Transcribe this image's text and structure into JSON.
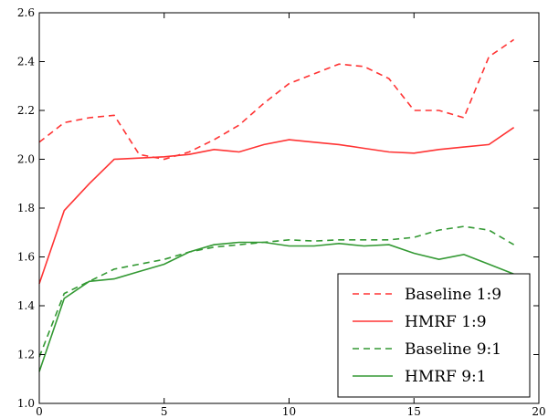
{
  "chart_data": {
    "type": "line",
    "title": "",
    "xlabel": "",
    "ylabel": "",
    "xlim": [
      0,
      20
    ],
    "ylim": [
      1.0,
      2.6
    ],
    "x_ticks": [
      0,
      5,
      10,
      15,
      20
    ],
    "x_tick_labels": [
      "0",
      "5",
      "10",
      "15",
      "20"
    ],
    "y_ticks": [
      1.0,
      1.2,
      1.4,
      1.6,
      1.8,
      2.0,
      2.2,
      2.4,
      2.6
    ],
    "y_tick_labels": [
      "1.0",
      "1.2",
      "1.4",
      "1.6",
      "1.8",
      "2.0",
      "2.2",
      "2.4",
      "2.6"
    ],
    "grid": false,
    "legend_position": "bottom-right",
    "x": [
      0,
      1,
      2,
      3,
      4,
      5,
      6,
      7,
      8,
      9,
      10,
      11,
      12,
      13,
      14,
      15,
      16,
      17,
      18,
      19
    ],
    "series": [
      {
        "name": "Baseline 1:9",
        "color": "#ff3333",
        "dash": "dashed",
        "values": [
          2.07,
          2.15,
          2.17,
          2.18,
          2.02,
          2.0,
          2.03,
          2.08,
          2.14,
          2.23,
          2.31,
          2.35,
          2.39,
          2.38,
          2.33,
          2.2,
          2.2,
          2.17,
          2.42,
          2.49
        ]
      },
      {
        "name": "HMRF 1:9",
        "color": "#ff3333",
        "dash": "solid",
        "values": [
          1.49,
          1.79,
          1.9,
          2.0,
          2.005,
          2.01,
          2.02,
          2.04,
          2.03,
          2.06,
          2.08,
          2.07,
          2.06,
          2.045,
          2.03,
          2.025,
          2.04,
          2.05,
          2.06,
          2.13
        ]
      },
      {
        "name": "Baseline 9:1",
        "color": "#339933",
        "dash": "dashed",
        "values": [
          1.19,
          1.45,
          1.5,
          1.55,
          1.57,
          1.59,
          1.62,
          1.64,
          1.65,
          1.66,
          1.67,
          1.665,
          1.67,
          1.67,
          1.67,
          1.68,
          1.71,
          1.725,
          1.71,
          1.65
        ]
      },
      {
        "name": "HMRF 9:1",
        "color": "#339933",
        "dash": "solid",
        "values": [
          1.13,
          1.43,
          1.5,
          1.51,
          1.54,
          1.57,
          1.62,
          1.65,
          1.66,
          1.66,
          1.645,
          1.645,
          1.655,
          1.645,
          1.65,
          1.615,
          1.59,
          1.61,
          1.57,
          1.53
        ]
      }
    ]
  }
}
